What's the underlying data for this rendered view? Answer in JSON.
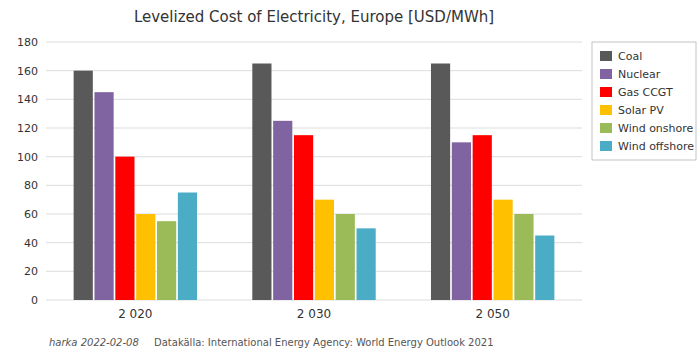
{
  "chart_data": {
    "type": "bar",
    "title": "Levelized Cost of Electricity, Europe [USD/MWh]",
    "categories": [
      "2 020",
      "2 030",
      "2 050"
    ],
    "series": [
      {
        "name": "Coal",
        "color": "#595959",
        "values": [
          160,
          165,
          165
        ]
      },
      {
        "name": "Nuclear",
        "color": "#8064A2",
        "values": [
          145,
          125,
          110
        ]
      },
      {
        "name": "Gas CCGT",
        "color": "#FF0000",
        "values": [
          100,
          115,
          115
        ]
      },
      {
        "name": "Solar PV",
        "color": "#FFC000",
        "values": [
          60,
          70,
          70
        ]
      },
      {
        "name": "Wind onshore",
        "color": "#9BBB59",
        "values": [
          55,
          60,
          60
        ]
      },
      {
        "name": "Wind offshore",
        "color": "#4BACC6",
        "values": [
          75,
          50,
          45
        ]
      }
    ],
    "ylim": [
      0,
      180
    ],
    "yticks": [
      0,
      20,
      40,
      60,
      80,
      100,
      120,
      140,
      160,
      180
    ],
    "grid": true,
    "legend": "upper right",
    "annotations": [
      "harka 2022-02-08",
      "Datakälla: International Energy Agency: World Energy Outlook 2021"
    ]
  }
}
